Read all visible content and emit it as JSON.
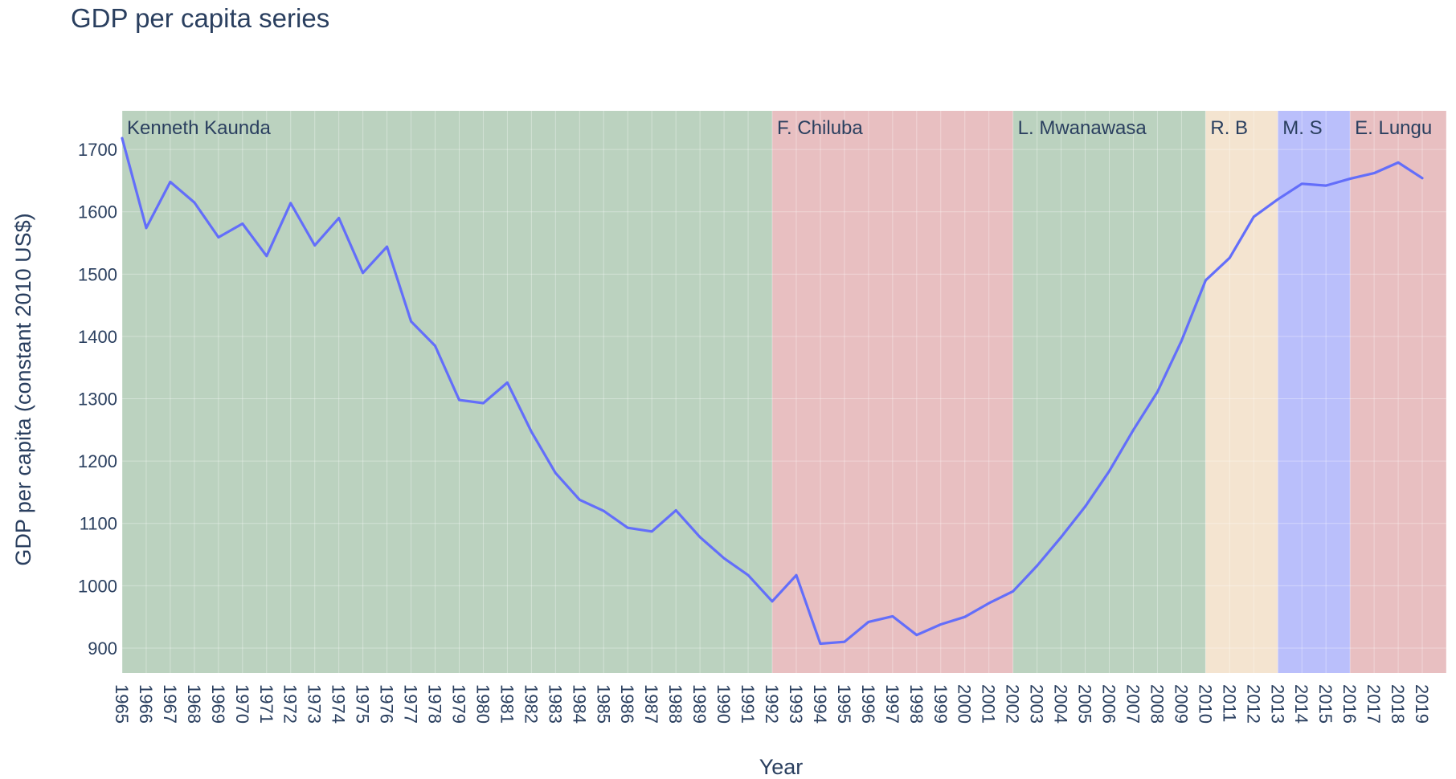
{
  "chart_data": {
    "type": "line",
    "title": "GDP per capita series",
    "xlabel": "Year",
    "ylabel": "GDP per capita (constant 2010 US$)",
    "xlim": [
      1965,
      2020
    ],
    "ylim": [
      860,
      1762
    ],
    "y_ticks": [
      900,
      1000,
      1100,
      1200,
      1300,
      1400,
      1500,
      1600,
      1700
    ],
    "grid": true,
    "x": [
      1965,
      1966,
      1967,
      1968,
      1969,
      1970,
      1971,
      1972,
      1973,
      1974,
      1975,
      1976,
      1977,
      1978,
      1979,
      1980,
      1981,
      1982,
      1983,
      1984,
      1985,
      1986,
      1987,
      1988,
      1989,
      1990,
      1991,
      1992,
      1993,
      1994,
      1995,
      1996,
      1997,
      1998,
      1999,
      2000,
      2001,
      2002,
      2003,
      2004,
      2005,
      2006,
      2007,
      2008,
      2009,
      2010,
      2011,
      2012,
      2013,
      2014,
      2015,
      2016,
      2017,
      2018,
      2019
    ],
    "values": [
      1718,
      1574,
      1648,
      1615,
      1559,
      1581,
      1529,
      1614,
      1546,
      1590,
      1502,
      1544,
      1424,
      1385,
      1298,
      1293,
      1326,
      1247,
      1181,
      1138,
      1120,
      1093,
      1087,
      1121,
      1078,
      1044,
      1017,
      975,
      1017,
      907,
      910,
      942,
      951,
      921,
      938,
      950,
      972,
      991,
      1032,
      1078,
      1127,
      1184,
      1250,
      1311,
      1393,
      1490,
      1526,
      1592,
      1620,
      1645,
      1642,
      1653,
      1662,
      1679,
      1654
    ],
    "line_color": "#636efa",
    "bands": [
      {
        "label": "Kenneth Kaunda",
        "start": 1965,
        "end": 1992,
        "color": "#1e6b2a"
      },
      {
        "label": "F. Chiluba",
        "start": 1992,
        "end": 2002,
        "color": "#b32b32"
      },
      {
        "label": "L. Mwanawasa",
        "start": 2002,
        "end": 2010,
        "color": "#1e6b2a"
      },
      {
        "label": "R. B",
        "start": 2010,
        "end": 2013,
        "color": "#d9a463"
      },
      {
        "label": "M. S",
        "start": 2013,
        "end": 2016,
        "color": "#1a2bf2"
      },
      {
        "label": "E. Lungu",
        "start": 2016,
        "end": 2020,
        "color": "#b32b32"
      }
    ]
  }
}
